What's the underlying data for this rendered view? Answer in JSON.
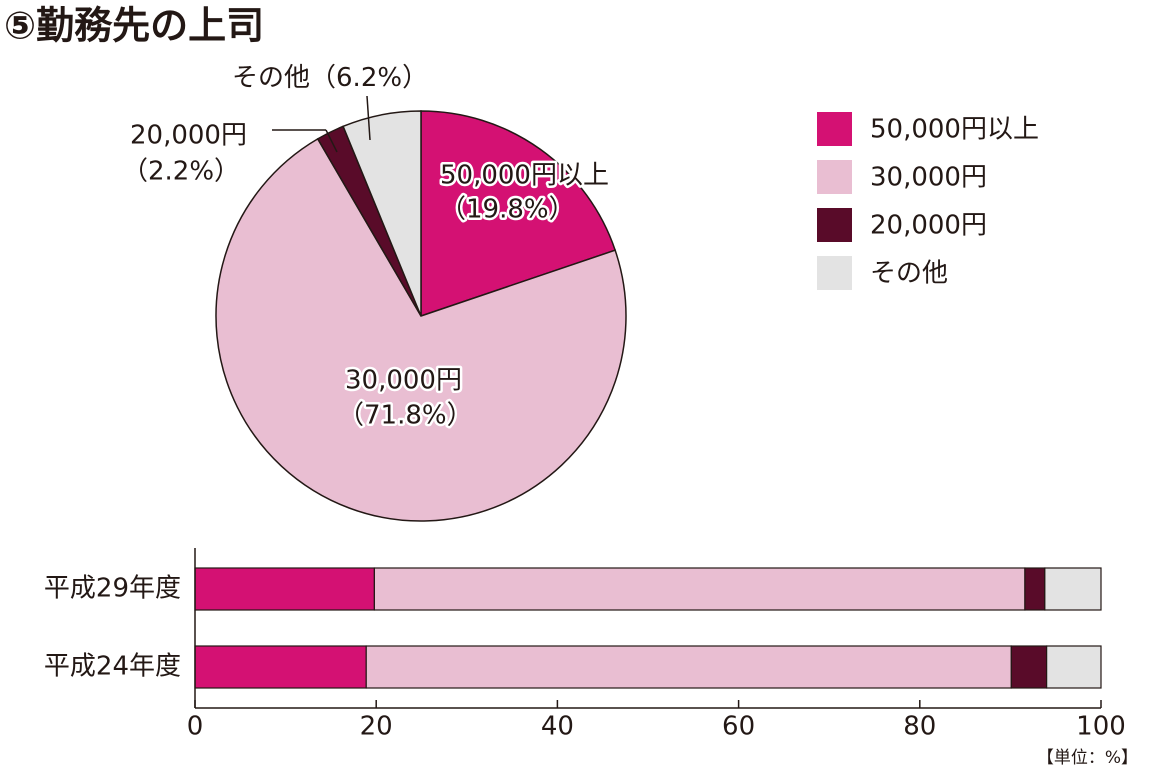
{
  "title": "⑤勤務先の上司",
  "chart_data": [
    {
      "type": "pie",
      "categories": [
        "50,000円以上",
        "30,000円",
        "20,000円",
        "その他"
      ],
      "values": [
        19.8,
        71.8,
        2.2,
        6.2
      ],
      "value_labels": [
        "（19.8%）",
        "（71.8%）",
        "（2.2%）",
        "（6.2%）"
      ],
      "colors": [
        "#d41173",
        "#e9bed2",
        "#590b29",
        "#e3e3e3"
      ]
    },
    {
      "type": "stacked-bar-horizontal",
      "categories": [
        "平成29年度",
        "平成24年度"
      ],
      "series": [
        {
          "name": "50,000円以上",
          "color": "#d41173",
          "values": [
            19.8,
            18.9
          ]
        },
        {
          "name": "30,000円",
          "color": "#e9bed2",
          "values": [
            71.8,
            71.2
          ]
        },
        {
          "name": "20,000円",
          "color": "#590b29",
          "values": [
            2.2,
            3.9
          ]
        },
        {
          "name": "その他",
          "color": "#e3e3e3",
          "values": [
            6.2,
            6.0
          ]
        }
      ],
      "xlim": [
        0,
        100
      ],
      "xticks": [
        0,
        20,
        40,
        60,
        80,
        100
      ],
      "unit_note": "【単位：%】",
      "legend": "top-right"
    }
  ]
}
